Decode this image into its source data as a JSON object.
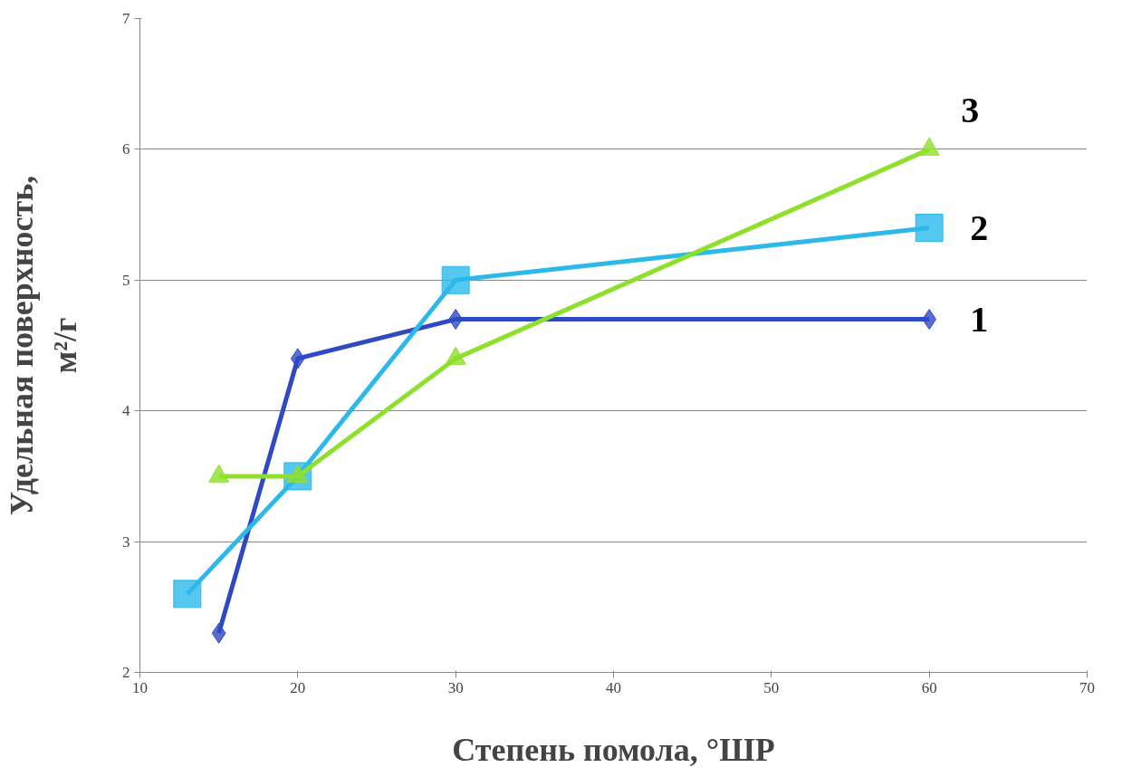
{
  "chart_data": {
    "type": "line",
    "xlabel": "Степень помола, °ШР",
    "ylabel": "Удельная поверхность,\nм²/г",
    "xlim": [
      10,
      70
    ],
    "xticks": [
      10,
      20,
      30,
      40,
      50,
      60,
      70
    ],
    "ylim": [
      2,
      7
    ],
    "yticks": [
      2,
      3,
      4,
      5,
      6,
      7
    ],
    "grid": "y",
    "legend": false,
    "series": [
      {
        "name": "1",
        "color": "#2f49c4",
        "marker": "diamond",
        "x": [
          15,
          20,
          30,
          60
        ],
        "values": [
          2.3,
          4.4,
          4.7,
          4.7
        ]
      },
      {
        "name": "2",
        "color": "#2cb9ea",
        "marker": "square",
        "x": [
          13,
          20,
          30,
          60
        ],
        "values": [
          2.6,
          3.5,
          5.0,
          5.4
        ]
      },
      {
        "name": "3",
        "color": "#8ee02c",
        "marker": "triangle",
        "x": [
          15,
          20,
          30,
          60
        ],
        "values": [
          3.5,
          3.5,
          4.4,
          6.0
        ]
      }
    ]
  }
}
